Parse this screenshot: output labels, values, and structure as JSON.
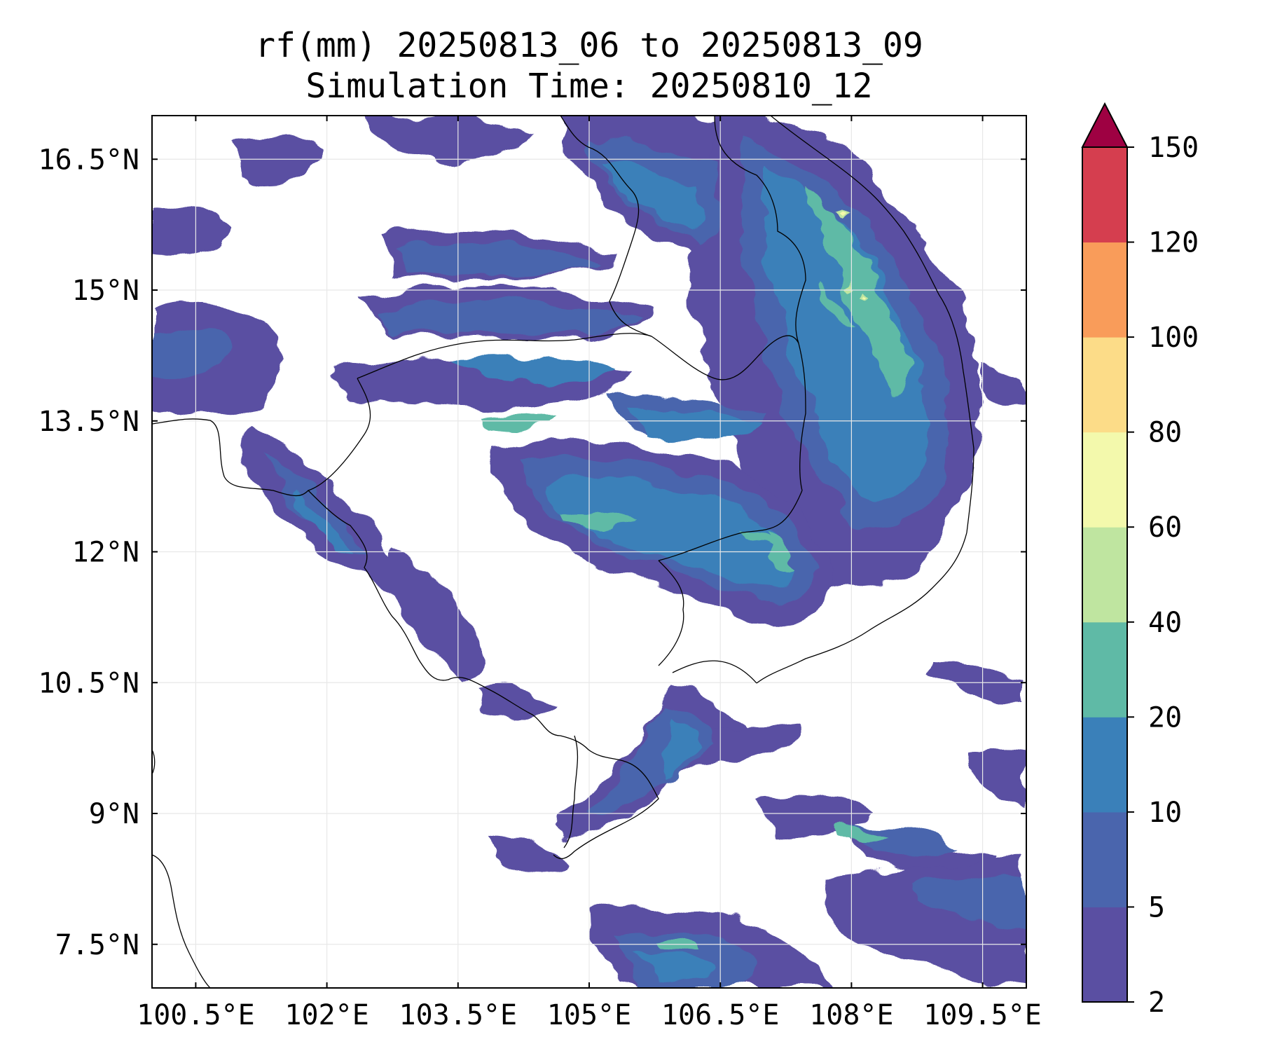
{
  "title": {
    "line1": "rf(mm) 20250813_06 to 20250813_09",
    "line2": "Simulation Time: 20250810_12"
  },
  "map": {
    "lon_range": [
      100.0,
      110.0
    ],
    "lat_range": [
      7.0,
      17.0
    ],
    "lon_ticks": [
      100.5,
      102,
      103.5,
      105,
      106.5,
      108,
      109.5
    ],
    "lon_tick_labels": [
      "100.5°E",
      "102°E",
      "103.5°E",
      "105°E",
      "106.5°E",
      "108°E",
      "109.5°E"
    ],
    "lat_ticks": [
      7.5,
      9,
      10.5,
      12,
      13.5,
      15,
      16.5
    ],
    "lat_tick_labels": [
      "7.5°N",
      "9°N",
      "10.5°N",
      "12°N",
      "13.5°N",
      "15°N",
      "16.5°N"
    ],
    "grid": true
  },
  "colorbar": {
    "levels": [
      2,
      5,
      10,
      20,
      40,
      60,
      80,
      100,
      120,
      150
    ],
    "labels": [
      "2",
      "5",
      "10",
      "20",
      "40",
      "60",
      "80",
      "100",
      "120",
      "150"
    ],
    "colors": [
      "#5a4fa2",
      "#4a65ad",
      "#3a80b9",
      "#5fbaa6",
      "#bfe5a0",
      "#f3f9ac",
      "#fcdc88",
      "#f99c5a",
      "#d53e4f"
    ],
    "extend_color": "#9e0142",
    "extend": "max"
  }
}
